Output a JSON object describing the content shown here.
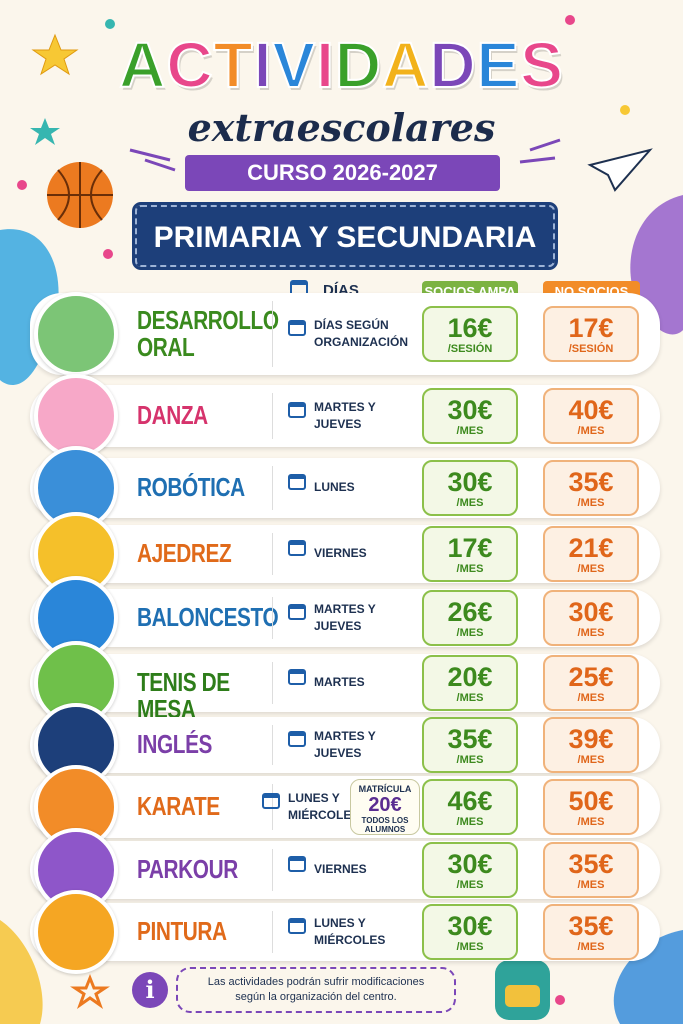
{
  "header": {
    "title": "ACTIVIDADES",
    "subtitle": "extraescolares",
    "course": "CURSO 2026-2027",
    "level": "PRIMARIA Y SECUNDARIA"
  },
  "table": {
    "columns": {
      "days": "DÍAS",
      "members": "SOCIOS AMPA",
      "non_members": "NO SOCIOS"
    },
    "rows": [
      {
        "name": "DESARROLLO ORAL",
        "days": "DÍAS SEGÚN ORGANIZACIÓN",
        "member_price": "16€",
        "member_unit": "/SESIÓN",
        "non_member_price": "17€",
        "non_member_unit": "/SESIÓN"
      },
      {
        "name": "DANZA",
        "days": "MARTES Y JUEVES",
        "member_price": "30€",
        "member_unit": "/MES",
        "non_member_price": "40€",
        "non_member_unit": "/MES"
      },
      {
        "name": "ROBÓTICA",
        "days": "LUNES",
        "member_price": "30€",
        "member_unit": "/MES",
        "non_member_price": "35€",
        "non_member_unit": "/MES"
      },
      {
        "name": "AJEDREZ",
        "days": "VIERNES",
        "member_price": "17€",
        "member_unit": "/MES",
        "non_member_price": "21€",
        "non_member_unit": "/MES"
      },
      {
        "name": "BALONCESTO",
        "days": "MARTES Y JUEVES",
        "member_price": "26€",
        "member_unit": "/MES",
        "non_member_price": "30€",
        "non_member_unit": "/MES"
      },
      {
        "name": "TENIS DE MESA",
        "days": "MARTES",
        "member_price": "20€",
        "member_unit": "/MES",
        "non_member_price": "25€",
        "non_member_unit": "/MES"
      },
      {
        "name": "INGLÉS",
        "days": "MARTES Y JUEVES",
        "member_price": "35€",
        "member_unit": "/MES",
        "non_member_price": "39€",
        "non_member_unit": "/MES"
      },
      {
        "name": "KARATE",
        "days": "LUNES Y MIÉRCOLES",
        "member_price": "46€",
        "member_unit": "/MES",
        "non_member_price": "50€",
        "non_member_unit": "/MES",
        "enrollment": {
          "label": "MATRÍCULA",
          "price": "20€",
          "note": "TODOS LOS ALUMNOS"
        }
      },
      {
        "name": "PARKOUR",
        "days": "VIERNES",
        "member_price": "30€",
        "member_unit": "/MES",
        "non_member_price": "35€",
        "non_member_unit": "/MES"
      },
      {
        "name": "PINTURA",
        "days": "LUNES Y MIÉRCOLES",
        "member_price": "30€",
        "member_unit": "/MES",
        "non_member_price": "35€",
        "non_member_unit": "/MES"
      }
    ]
  },
  "footer": {
    "note": "Las actividades podrán sufrir modificaciones según la organización del centro."
  }
}
